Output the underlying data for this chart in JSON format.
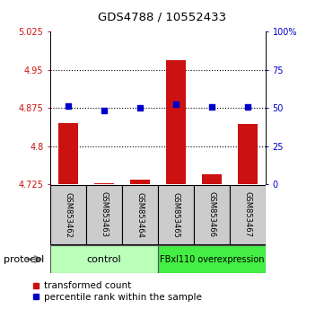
{
  "title": "GDS4788 / 10552433",
  "samples": [
    "GSM853462",
    "GSM853463",
    "GSM853464",
    "GSM853465",
    "GSM853466",
    "GSM853467"
  ],
  "red_values": [
    4.845,
    4.728,
    4.735,
    4.97,
    4.745,
    4.843
  ],
  "blue_values": [
    4.879,
    4.87,
    4.876,
    4.882,
    4.878,
    4.878
  ],
  "ylim_left": [
    4.725,
    5.025
  ],
  "ylim_right": [
    0,
    100
  ],
  "yticks_left": [
    4.725,
    4.8,
    4.875,
    4.95,
    5.025
  ],
  "yticks_right": [
    0,
    25,
    50,
    75,
    100
  ],
  "ytick_labels_left": [
    "4.725",
    "4.8",
    "4.875",
    "4.95",
    "5.025"
  ],
  "ytick_labels_right": [
    "0",
    "25",
    "50",
    "75",
    "100%"
  ],
  "dotted_lines": [
    4.8,
    4.875,
    4.95
  ],
  "control_label": "control",
  "overexpression_label": "FBxl110 overexpression",
  "protocol_label": "protocol",
  "legend_red": "transformed count",
  "legend_blue": "percentile rank within the sample",
  "red_color": "#cc1111",
  "blue_color": "#0000cc",
  "bar_width": 0.55,
  "control_bg": "#bbffbb",
  "overexpression_bg": "#44ee44",
  "sample_bg": "#cccccc",
  "n_control": 3,
  "n_over": 3
}
